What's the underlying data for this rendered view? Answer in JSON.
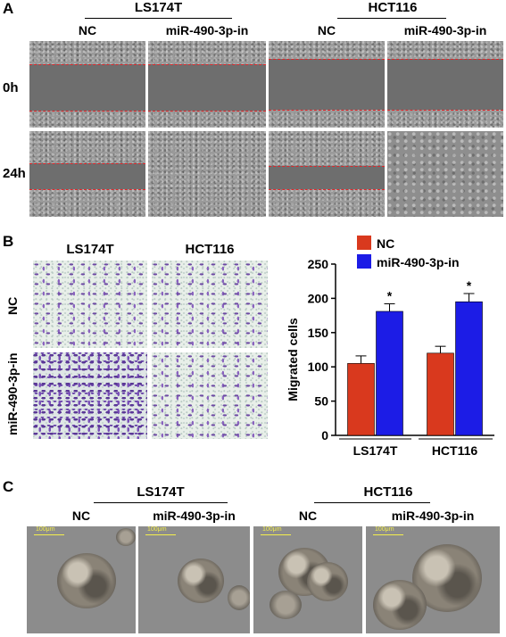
{
  "panel_a": {
    "letter": "A",
    "groups": [
      "LS174T",
      "HCT116"
    ],
    "columns": [
      "NC",
      "miR-490-3p-in",
      "NC",
      "miR-490-3p-in"
    ],
    "rows": [
      "0h",
      "24h"
    ]
  },
  "panel_b": {
    "letter": "B",
    "groups": [
      "LS174T",
      "HCT116"
    ],
    "rows": [
      "NC",
      "miR-490-3p-in"
    ]
  },
  "panel_c": {
    "letter": "C",
    "groups": [
      "LS174T",
      "HCT116"
    ],
    "columns": [
      "NC",
      "miR-490-3p-in",
      "NC",
      "miR-490-3p-in"
    ],
    "scale_label": "100μm"
  },
  "colors": {
    "nc": "#d9391e",
    "mir": "#1c1ce6",
    "wound_line": "#e0262a"
  },
  "chart_data": {
    "type": "bar",
    "categories": [
      "LS174T",
      "HCT116"
    ],
    "series": [
      {
        "name": "NC",
        "values": [
          105,
          120
        ],
        "errors": [
          11,
          10
        ],
        "color": "#d9391e"
      },
      {
        "name": "miR-490-3p-in",
        "values": [
          181,
          195
        ],
        "errors": [
          11,
          12
        ],
        "color": "#1c1ce6"
      }
    ],
    "significance": [
      "*",
      "*"
    ],
    "ylabel": "Migrated cells",
    "xlabel": "",
    "ylim": [
      0,
      250
    ],
    "yticks": [
      0,
      50,
      100,
      150,
      200,
      250
    ],
    "legend_position": "top"
  }
}
